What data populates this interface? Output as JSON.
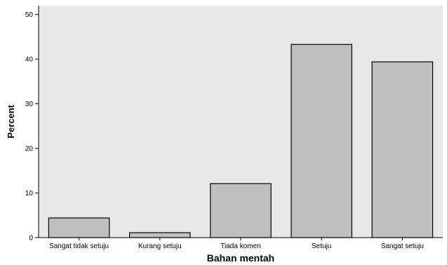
{
  "chart_data": {
    "type": "bar",
    "title": "",
    "xlabel": "Bahan mentah",
    "ylabel": "Percent",
    "categories": [
      "Sangat tidak setuju",
      "Kurang setuju",
      "Tiada komen",
      "Setuju",
      "Sangat setuju"
    ],
    "values": [
      4.4,
      1.1,
      12.1,
      43.3,
      39.4
    ],
    "ylim": [
      0,
      52
    ],
    "yticks": [
      "0",
      "10",
      "20",
      "30",
      "40",
      "50"
    ],
    "grid": false,
    "legend": "none",
    "colors": {
      "plot_background": "#e8e8e8",
      "bar_fill": "#c0c0c0",
      "bar_stroke": "#000000",
      "axis": "#000000"
    }
  }
}
